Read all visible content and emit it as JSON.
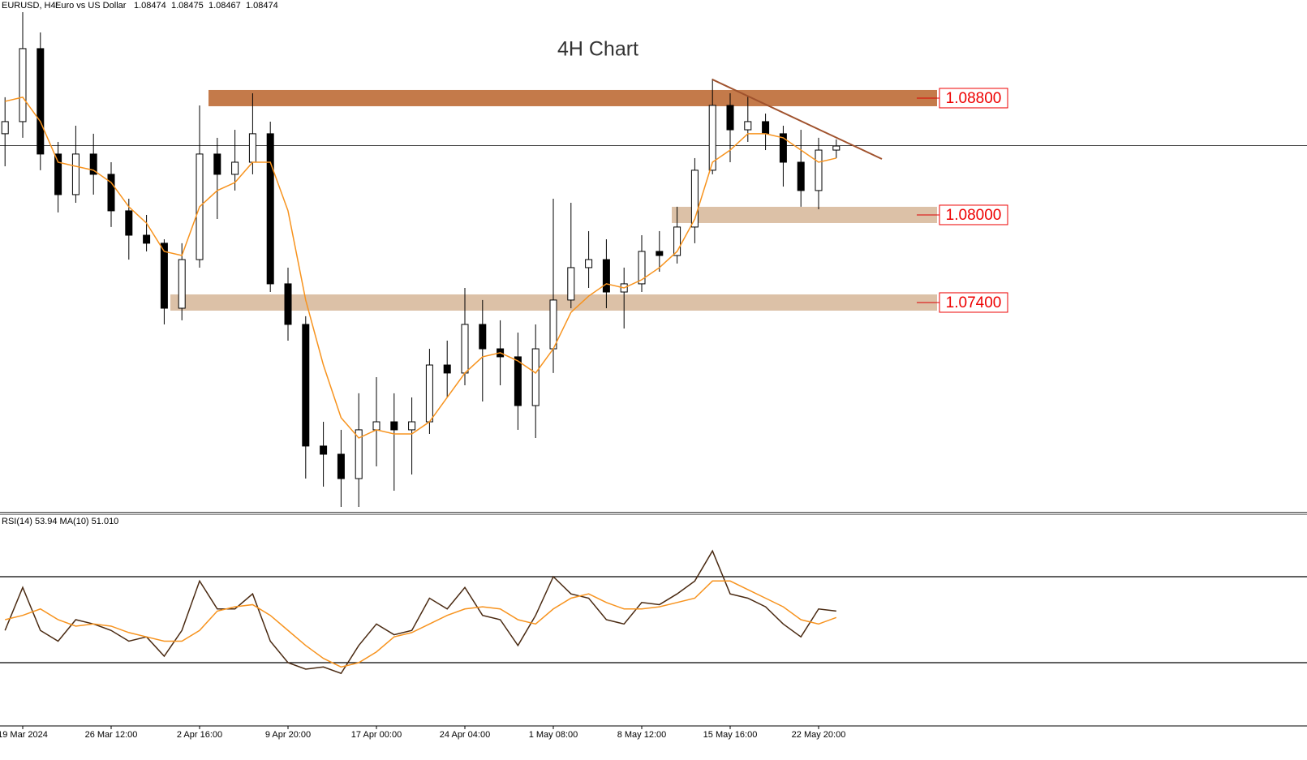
{
  "chart_data": [
    {
      "type": "candlestick",
      "title": "4H Chart",
      "symbol": "EURUSD, H4:",
      "description": "Euro vs US Dollar",
      "quote": [
        1.08474,
        1.08475,
        1.08467,
        1.08474
      ],
      "categories": [
        null,
        "19 Mar 2024",
        null,
        null,
        null,
        null,
        "26 Mar 12:00",
        null,
        null,
        null,
        null,
        "2 Apr 16:00",
        null,
        null,
        null,
        null,
        "9 Apr 20:00",
        null,
        null,
        null,
        null,
        "17 Apr 00:00",
        null,
        null,
        null,
        null,
        "24 Apr 04:00",
        null,
        null,
        null,
        null,
        "1 May 08:00",
        null,
        null,
        null,
        null,
        "8 May 12:00",
        null,
        null,
        null,
        null,
        "15 May 16:00",
        null,
        null,
        null,
        null,
        "22 May 20:00",
        null
      ],
      "open": [
        1.08556,
        1.08639,
        1.09139,
        1.08417,
        1.08139,
        1.08417,
        1.08278,
        1.08028,
        1.07861,
        1.07806,
        1.07361,
        1.07694,
        1.08417,
        1.08278,
        1.08361,
        1.08556,
        1.07528,
        1.0725,
        1.06417,
        1.06361,
        1.06194,
        1.06528,
        1.06583,
        1.06528,
        1.06583,
        1.06972,
        1.06917,
        1.0725,
        1.07083,
        1.07028,
        1.06694,
        1.07083,
        1.07417,
        1.07639,
        1.07694,
        1.07472,
        1.07528,
        1.0775,
        1.07722,
        1.07917,
        1.08306,
        1.0875,
        1.08583,
        1.08639,
        1.08556,
        1.08361,
        1.08167,
        1.08444
      ],
      "high": [
        1.08806,
        1.09389,
        1.0925,
        1.085,
        1.08611,
        1.08556,
        1.08361,
        1.08111,
        1.08,
        1.07833,
        1.07806,
        1.0875,
        1.08528,
        1.08583,
        1.08833,
        1.08639,
        1.07639,
        1.07306,
        1.06583,
        1.06528,
        1.06778,
        1.06889,
        1.06778,
        1.0675,
        1.07083,
        1.07139,
        1.075,
        1.07417,
        1.07278,
        1.07194,
        1.0725,
        1.08111,
        1.08083,
        1.07889,
        1.07833,
        1.07639,
        1.07861,
        1.07889,
        1.08056,
        1.08389,
        1.08933,
        1.08833,
        1.08817,
        1.08694,
        1.08611,
        1.08583,
        1.08528,
        1.08517
      ],
      "low": [
        1.08333,
        1.08528,
        1.08306,
        1.08017,
        1.08083,
        1.08139,
        1.07917,
        1.07694,
        1.0775,
        1.0725,
        1.07278,
        1.07639,
        1.07972,
        1.08167,
        1.08278,
        1.07472,
        1.07139,
        1.06194,
        1.06139,
        1.06,
        1.06,
        1.06278,
        1.06111,
        1.06222,
        1.065,
        1.0675,
        1.06833,
        1.06722,
        1.06833,
        1.06528,
        1.06472,
        1.06917,
        1.07361,
        1.075,
        1.07361,
        1.07222,
        1.07472,
        1.07611,
        1.07667,
        1.07806,
        1.08278,
        1.08361,
        1.085,
        1.08444,
        1.08194,
        1.08056,
        1.08039,
        1.08389
      ],
      "close": [
        1.08639,
        1.09139,
        1.08417,
        1.08139,
        1.08417,
        1.08278,
        1.08028,
        1.07861,
        1.07806,
        1.07361,
        1.07694,
        1.08417,
        1.08278,
        1.08361,
        1.08556,
        1.07528,
        1.0725,
        1.06417,
        1.06361,
        1.06194,
        1.06528,
        1.06583,
        1.06528,
        1.06583,
        1.06972,
        1.06917,
        1.0725,
        1.07083,
        1.07028,
        1.06694,
        1.07083,
        1.07417,
        1.07639,
        1.07694,
        1.07472,
        1.07528,
        1.0775,
        1.07722,
        1.07917,
        1.08306,
        1.0875,
        1.08583,
        1.08639,
        1.08556,
        1.08361,
        1.08167,
        1.08444,
        1.08472
      ],
      "ma": {
        "color": "#f7931e",
        "values": [
          1.08778,
          1.08806,
          1.08639,
          1.08361,
          1.08333,
          1.08306,
          1.08222,
          1.08056,
          1.07944,
          1.0775,
          1.07722,
          1.08056,
          1.08167,
          1.08222,
          1.08361,
          1.08361,
          1.08028,
          1.07417,
          1.06972,
          1.06611,
          1.06472,
          1.06528,
          1.065,
          1.065,
          1.06583,
          1.0675,
          1.06917,
          1.07028,
          1.07056,
          1.07,
          1.06917,
          1.07083,
          1.07333,
          1.07444,
          1.07528,
          1.075,
          1.07556,
          1.07639,
          1.0775,
          1.07972,
          1.08361,
          1.08444,
          1.08556,
          1.08556,
          1.08528,
          1.08444,
          1.08361,
          1.08389
        ]
      },
      "ylim": [
        1.05961,
        1.09472
      ],
      "zones": [
        {
          "value": 1.088,
          "label": "1.08800",
          "color": "#c47a4a"
        },
        {
          "value": 1.08,
          "label": "1.08000",
          "color": "#dcc1a7"
        },
        {
          "value": 1.074,
          "label": "1.07400",
          "color": "#dcc1a7"
        }
      ],
      "trendline": {
        "color": "#a0522d",
        "values": [
          1.08928,
          1.08383
        ]
      }
    },
    {
      "type": "line",
      "label": "RSI(14) 53.94 MA(10) 51.010",
      "series": [
        {
          "color": "#4a2a12",
          "values": [
            45,
            65,
            45,
            40,
            50,
            48,
            45,
            40,
            42,
            33,
            45,
            68,
            55,
            55,
            62,
            40,
            30,
            27,
            28,
            25,
            38,
            48,
            43,
            45,
            60,
            55,
            65,
            52,
            50,
            38,
            52,
            70,
            62,
            60,
            50,
            48,
            58,
            57,
            62,
            68,
            82,
            62,
            60,
            56,
            48,
            42,
            55,
            54
          ]
        },
        {
          "color": "#f7931e",
          "values": [
            50,
            52,
            55,
            50,
            47,
            48,
            47,
            44,
            42,
            40,
            40,
            45,
            54,
            56,
            57,
            52,
            45,
            38,
            32,
            28,
            30,
            35,
            42,
            44,
            48,
            52,
            55,
            56,
            55,
            50,
            48,
            55,
            60,
            62,
            58,
            55,
            55,
            56,
            58,
            60,
            68,
            68,
            64,
            60,
            56,
            50,
            48,
            51
          ]
        }
      ],
      "levels": [
        70,
        30
      ],
      "ylim": [
        0.57,
        98.3
      ]
    }
  ]
}
